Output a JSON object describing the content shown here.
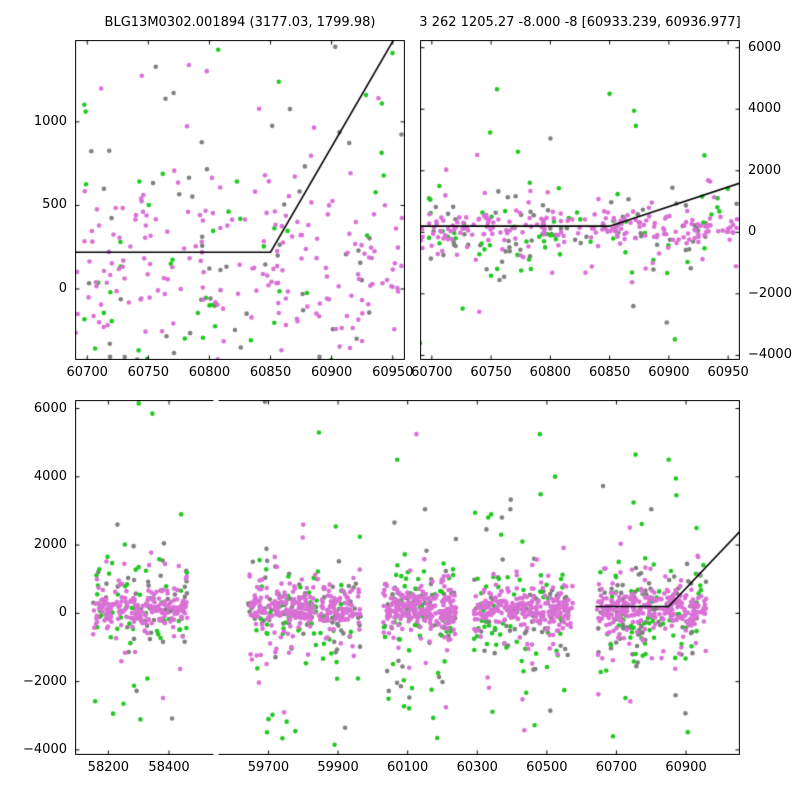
{
  "titles": {
    "left": "BLG13M0302.001894 (3177.03, 1799.98)",
    "right": "3 262 1205.27 -8.000 -8 [60933.239, 60936.977]"
  },
  "colors": {
    "magenta": "#da70d6",
    "green": "#22c822",
    "gray": "#808080",
    "line": "#000000"
  },
  "chart_data": {
    "type": "scatter",
    "description": "Light-curve residual scatter plots: two zoom panels of the final observing season (top) and full multi-season broken-axis panel (bottom), with piecewise-linear model line rising near MJD 60900",
    "grid": false,
    "legend": "none",
    "subplots": [
      {
        "id": "top-left",
        "xlim": [
          60690,
          60960
        ],
        "ylim": [
          -425,
          1490
        ],
        "xticks": [
          60700,
          60750,
          60800,
          60850,
          60900,
          60950
        ],
        "yticks_left": [
          0,
          500,
          1000
        ],
        "line": [
          [
            60690,
            220
          ],
          [
            60850,
            220
          ],
          [
            60953,
            1520
          ]
        ],
        "clusters": [
          "season5"
        ]
      },
      {
        "id": "top-right",
        "xlim": [
          60690,
          60960
        ],
        "ylim": [
          -4150,
          6250
        ],
        "xticks": [
          60700,
          60750,
          60800,
          60850,
          60900,
          60950
        ],
        "yticks_right": [
          -4000,
          -2000,
          0,
          2000,
          4000,
          6000
        ],
        "line": [
          [
            60690,
            200
          ],
          [
            60850,
            200
          ],
          [
            60960,
            1600
          ]
        ],
        "clusters": [
          "season5"
        ]
      },
      {
        "id": "bottom",
        "segments": [
          {
            "xlim": [
              58090,
              58545
            ],
            "xticks": [
              58200,
              58400
            ]
          },
          {
            "xlim": [
              59555,
              61055
            ],
            "xticks": [
              59700,
              59900,
              60100,
              60300,
              60500,
              60700,
              60900
            ]
          }
        ],
        "ylim": [
          -4150,
          6250
        ],
        "yticks_left": [
          -4000,
          -2000,
          0,
          2000,
          4000,
          6000
        ],
        "line": [
          [
            60640,
            200
          ],
          [
            60850,
            200
          ],
          [
            61055,
            2400
          ]
        ],
        "clusters": [
          "season1",
          "season2",
          "season3",
          "season4",
          "season5"
        ]
      }
    ],
    "clusters": {
      "season1": {
        "x": [
          58150,
          58460
        ],
        "series": [
          {
            "color": "gray",
            "n": 55,
            "mu": 0,
            "sigma": 500,
            "tail_frac": 0.3,
            "tail_sigma": 1400
          },
          {
            "color": "green",
            "n": 55,
            "mu": 0,
            "sigma": 700,
            "tail_frac": 0.35,
            "tail_sigma": 1700
          },
          {
            "color": "magenta",
            "n": 210,
            "mu": 130,
            "sigma": 260,
            "tail_frac": 0.22,
            "tail_sigma": 1000
          }
        ],
        "outliers": [
          [
            "green",
            58300,
            6150
          ],
          [
            "green",
            58345,
            5850
          ],
          [
            "gray",
            58230,
            2600
          ],
          [
            "green",
            58250,
            -2650
          ],
          [
            "gray",
            58410,
            -3080
          ],
          [
            "magenta",
            58380,
            -2480
          ],
          [
            "green",
            58440,
            2900
          ]
        ]
      },
      "season2": {
        "x": [
          59640,
          59965
        ],
        "series": [
          {
            "color": "gray",
            "n": 70,
            "mu": 0,
            "sigma": 500,
            "tail_frac": 0.3,
            "tail_sigma": 1400
          },
          {
            "color": "green",
            "n": 70,
            "mu": 0,
            "sigma": 700,
            "tail_frac": 0.35,
            "tail_sigma": 1700
          },
          {
            "color": "magenta",
            "n": 280,
            "mu": 130,
            "sigma": 260,
            "tail_frac": 0.22,
            "tail_sigma": 1000
          }
        ],
        "outliers": [
          [
            "gray",
            59690,
            6200
          ],
          [
            "green",
            59845,
            5300
          ],
          [
            "magenta",
            59800,
            2600
          ],
          [
            "green",
            59890,
            -3850
          ],
          [
            "magenta",
            59745,
            -2900
          ],
          [
            "gray",
            59920,
            -3350
          ],
          [
            "green",
            59700,
            -3100
          ]
        ]
      },
      "season3": {
        "x": [
          60030,
          60240
        ],
        "series": [
          {
            "color": "gray",
            "n": 60,
            "mu": 0,
            "sigma": 500,
            "tail_frac": 0.3,
            "tail_sigma": 1400
          },
          {
            "color": "green",
            "n": 60,
            "mu": 0,
            "sigma": 700,
            "tail_frac": 0.35,
            "tail_sigma": 1700
          },
          {
            "color": "magenta",
            "n": 230,
            "mu": 130,
            "sigma": 260,
            "tail_frac": 0.22,
            "tail_sigma": 1000
          }
        ],
        "outliers": [
          [
            "magenta",
            60105,
            6300
          ],
          [
            "magenta",
            60125,
            5250
          ],
          [
            "green",
            60070,
            4500
          ],
          [
            "gray",
            60150,
            3050
          ],
          [
            "green",
            60185,
            -3650
          ],
          [
            "magenta",
            60210,
            -2750
          ],
          [
            "green",
            60045,
            -2500
          ]
        ]
      },
      "season4": {
        "x": [
          60290,
          60575
        ],
        "series": [
          {
            "color": "gray",
            "n": 65,
            "mu": 0,
            "sigma": 500,
            "tail_frac": 0.3,
            "tail_sigma": 1400
          },
          {
            "color": "green",
            "n": 65,
            "mu": 0,
            "sigma": 700,
            "tail_frac": 0.35,
            "tail_sigma": 1700
          },
          {
            "color": "magenta",
            "n": 250,
            "mu": 130,
            "sigma": 260,
            "tail_frac": 0.22,
            "tail_sigma": 1000
          }
        ],
        "outliers": [
          [
            "green",
            60480,
            5250
          ],
          [
            "gray",
            60395,
            3050
          ],
          [
            "green",
            60340,
            2900
          ],
          [
            "green",
            60465,
            -3280
          ],
          [
            "magenta",
            60430,
            -2520
          ],
          [
            "gray",
            60510,
            -2850
          ],
          [
            "green",
            60550,
            -2250
          ]
        ]
      },
      "season5": {
        "x": [
          60640,
          60958
        ],
        "series": [
          {
            "color": "gray",
            "n": 85,
            "mu": 0,
            "sigma": 500,
            "tail_frac": 0.3,
            "tail_sigma": 1400
          },
          {
            "color": "green",
            "n": 75,
            "mu": 0,
            "sigma": 700,
            "tail_frac": 0.35,
            "tail_sigma": 1700
          },
          {
            "color": "magenta",
            "n": 270,
            "mu": 150,
            "sigma": 260,
            "tail_frac": 0.22,
            "tail_sigma": 1000
          }
        ],
        "outliers": [
          [
            "green",
            60755,
            4650
          ],
          [
            "green",
            60850,
            4500
          ],
          [
            "gray",
            60800,
            3050
          ],
          [
            "green",
            60690,
            -3600
          ],
          [
            "green",
            60905,
            -3480
          ],
          [
            "magenta",
            60740,
            -2580
          ],
          [
            "gray",
            60870,
            -2400
          ],
          [
            "green",
            60930,
            2500
          ]
        ]
      }
    }
  }
}
